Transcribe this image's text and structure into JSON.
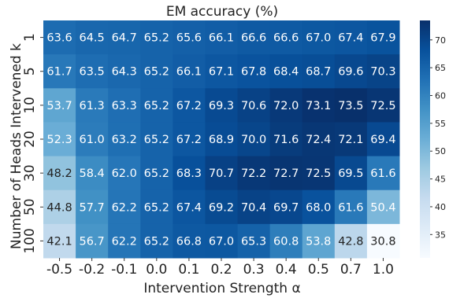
{
  "chart_data": {
    "type": "heatmap",
    "title": "EM accuracy (%)",
    "xlabel": "Intervention Strength α",
    "ylabel": "Number of Heads Intervened k",
    "x_categories": [
      "-0.5",
      "-0.2",
      "-0.1",
      "0.0",
      "0.1",
      "0.2",
      "0.3",
      "0.4",
      "0.5",
      "0.7",
      "1.0"
    ],
    "y_categories": [
      "1",
      "5",
      "10",
      "20",
      "30",
      "50",
      "100"
    ],
    "values": [
      [
        63.6,
        64.5,
        64.7,
        65.2,
        65.6,
        66.1,
        66.6,
        66.6,
        67.0,
        67.4,
        67.9
      ],
      [
        61.7,
        63.5,
        64.3,
        65.2,
        66.1,
        67.1,
        67.8,
        68.4,
        68.7,
        69.6,
        70.3
      ],
      [
        53.7,
        61.3,
        63.3,
        65.2,
        67.2,
        69.3,
        70.6,
        72.0,
        73.1,
        73.5,
        72.5
      ],
      [
        52.3,
        61.0,
        63.2,
        65.2,
        67.2,
        68.9,
        70.0,
        71.6,
        72.4,
        72.1,
        69.4
      ],
      [
        48.2,
        58.4,
        62.0,
        65.2,
        68.3,
        70.7,
        72.2,
        72.7,
        72.5,
        69.5,
        61.6
      ],
      [
        44.8,
        57.7,
        62.2,
        65.2,
        67.4,
        69.2,
        70.4,
        69.7,
        68.0,
        61.6,
        50.4
      ],
      [
        42.1,
        56.7,
        62.2,
        65.2,
        66.8,
        67.0,
        65.3,
        60.8,
        53.8,
        42.8,
        30.8
      ]
    ],
    "colorbar": {
      "ticks": [
        35,
        40,
        45,
        50,
        55,
        60,
        65,
        70
      ],
      "range": [
        30.8,
        73.5
      ],
      "colormap": "Blues"
    },
    "grid": false,
    "legend": "colorbar-right"
  }
}
